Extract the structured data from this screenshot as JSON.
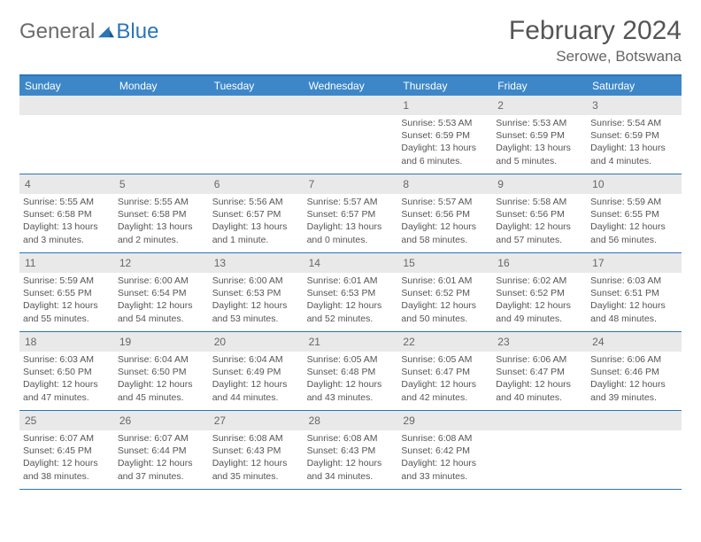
{
  "brand": {
    "part1": "General",
    "part2": "Blue"
  },
  "title": "February 2024",
  "location": "Serowe, Botswana",
  "colors": {
    "header_bg": "#3d87c9",
    "rule": "#2a76b8",
    "daynum_bg": "#e9e9e9",
    "text": "#555555",
    "logo_gray": "#6b6b6b",
    "logo_blue": "#2a76b8"
  },
  "dayhead": [
    "Sunday",
    "Monday",
    "Tuesday",
    "Wednesday",
    "Thursday",
    "Friday",
    "Saturday"
  ],
  "weeks": [
    [
      {
        "n": "",
        "empty": true
      },
      {
        "n": "",
        "empty": true
      },
      {
        "n": "",
        "empty": true
      },
      {
        "n": "",
        "empty": true
      },
      {
        "n": "1",
        "sr": "5:53 AM",
        "ss": "6:59 PM",
        "dl": "13 hours and 6 minutes."
      },
      {
        "n": "2",
        "sr": "5:53 AM",
        "ss": "6:59 PM",
        "dl": "13 hours and 5 minutes."
      },
      {
        "n": "3",
        "sr": "5:54 AM",
        "ss": "6:59 PM",
        "dl": "13 hours and 4 minutes."
      }
    ],
    [
      {
        "n": "4",
        "sr": "5:55 AM",
        "ss": "6:58 PM",
        "dl": "13 hours and 3 minutes."
      },
      {
        "n": "5",
        "sr": "5:55 AM",
        "ss": "6:58 PM",
        "dl": "13 hours and 2 minutes."
      },
      {
        "n": "6",
        "sr": "5:56 AM",
        "ss": "6:57 PM",
        "dl": "13 hours and 1 minute."
      },
      {
        "n": "7",
        "sr": "5:57 AM",
        "ss": "6:57 PM",
        "dl": "13 hours and 0 minutes."
      },
      {
        "n": "8",
        "sr": "5:57 AM",
        "ss": "6:56 PM",
        "dl": "12 hours and 58 minutes."
      },
      {
        "n": "9",
        "sr": "5:58 AM",
        "ss": "6:56 PM",
        "dl": "12 hours and 57 minutes."
      },
      {
        "n": "10",
        "sr": "5:59 AM",
        "ss": "6:55 PM",
        "dl": "12 hours and 56 minutes."
      }
    ],
    [
      {
        "n": "11",
        "sr": "5:59 AM",
        "ss": "6:55 PM",
        "dl": "12 hours and 55 minutes."
      },
      {
        "n": "12",
        "sr": "6:00 AM",
        "ss": "6:54 PM",
        "dl": "12 hours and 54 minutes."
      },
      {
        "n": "13",
        "sr": "6:00 AM",
        "ss": "6:53 PM",
        "dl": "12 hours and 53 minutes."
      },
      {
        "n": "14",
        "sr": "6:01 AM",
        "ss": "6:53 PM",
        "dl": "12 hours and 52 minutes."
      },
      {
        "n": "15",
        "sr": "6:01 AM",
        "ss": "6:52 PM",
        "dl": "12 hours and 50 minutes."
      },
      {
        "n": "16",
        "sr": "6:02 AM",
        "ss": "6:52 PM",
        "dl": "12 hours and 49 minutes."
      },
      {
        "n": "17",
        "sr": "6:03 AM",
        "ss": "6:51 PM",
        "dl": "12 hours and 48 minutes."
      }
    ],
    [
      {
        "n": "18",
        "sr": "6:03 AM",
        "ss": "6:50 PM",
        "dl": "12 hours and 47 minutes."
      },
      {
        "n": "19",
        "sr": "6:04 AM",
        "ss": "6:50 PM",
        "dl": "12 hours and 45 minutes."
      },
      {
        "n": "20",
        "sr": "6:04 AM",
        "ss": "6:49 PM",
        "dl": "12 hours and 44 minutes."
      },
      {
        "n": "21",
        "sr": "6:05 AM",
        "ss": "6:48 PM",
        "dl": "12 hours and 43 minutes."
      },
      {
        "n": "22",
        "sr": "6:05 AM",
        "ss": "6:47 PM",
        "dl": "12 hours and 42 minutes."
      },
      {
        "n": "23",
        "sr": "6:06 AM",
        "ss": "6:47 PM",
        "dl": "12 hours and 40 minutes."
      },
      {
        "n": "24",
        "sr": "6:06 AM",
        "ss": "6:46 PM",
        "dl": "12 hours and 39 minutes."
      }
    ],
    [
      {
        "n": "25",
        "sr": "6:07 AM",
        "ss": "6:45 PM",
        "dl": "12 hours and 38 minutes."
      },
      {
        "n": "26",
        "sr": "6:07 AM",
        "ss": "6:44 PM",
        "dl": "12 hours and 37 minutes."
      },
      {
        "n": "27",
        "sr": "6:08 AM",
        "ss": "6:43 PM",
        "dl": "12 hours and 35 minutes."
      },
      {
        "n": "28",
        "sr": "6:08 AM",
        "ss": "6:43 PM",
        "dl": "12 hours and 34 minutes."
      },
      {
        "n": "29",
        "sr": "6:08 AM",
        "ss": "6:42 PM",
        "dl": "12 hours and 33 minutes."
      },
      {
        "n": "",
        "empty": true
      },
      {
        "n": "",
        "empty": true
      }
    ]
  ],
  "labels": {
    "sunrise": "Sunrise: ",
    "sunset": "Sunset: ",
    "daylight": "Daylight: "
  }
}
